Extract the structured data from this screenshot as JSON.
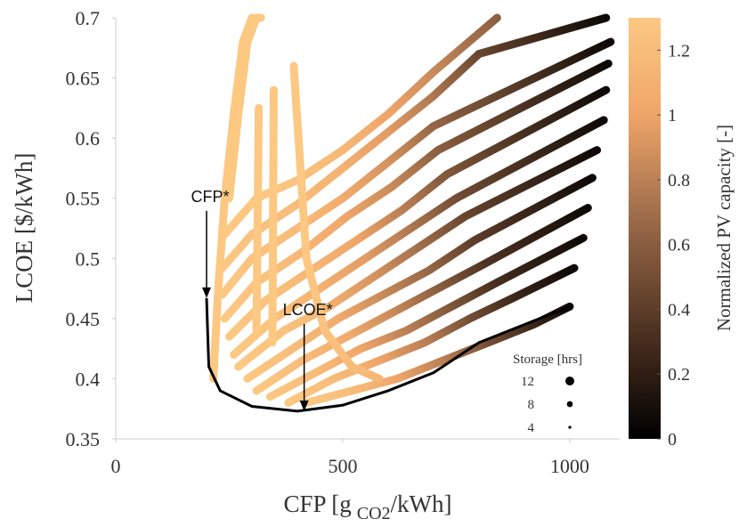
{
  "chart_data": {
    "type": "line",
    "xlabel": {
      "main": "CFP [g",
      "sub": "CO2",
      "tail": "/kWh]"
    },
    "ylabel": "LCOE [$/kWh]",
    "xlim": [
      0,
      1110
    ],
    "xticks": [
      0,
      500,
      1000
    ],
    "ylim": [
      0.35,
      0.7
    ],
    "yticks": [
      0.35,
      0.4,
      0.45,
      0.5,
      0.55,
      0.6,
      0.65,
      0.7
    ],
    "colorbar": {
      "label": "Normalized PV capacity [-]",
      "clim": [
        0,
        1.3
      ],
      "ticks": [
        0,
        0.2,
        0.4,
        0.6,
        0.8,
        1,
        1.2
      ]
    },
    "series": [
      {
        "x": [
          420,
          520,
          620,
          720,
          820,
          920,
          1000
        ],
        "values": [
          0.38,
          0.39,
          0.4,
          0.415,
          0.43,
          0.445,
          0.46
        ],
        "c": [
          1.3,
          1.2,
          1.0,
          0.8,
          0.5,
          0.25,
          0.05
        ]
      },
      {
        "x": [
          380,
          480,
          580,
          680,
          780,
          880,
          1010
        ],
        "values": [
          0.38,
          0.4,
          0.415,
          0.43,
          0.45,
          0.468,
          0.492
        ],
        "c": [
          1.3,
          1.2,
          1.0,
          0.8,
          0.5,
          0.25,
          0.05
        ]
      },
      {
        "x": [
          340,
          440,
          540,
          640,
          740,
          840,
          1030
        ],
        "values": [
          0.385,
          0.405,
          0.425,
          0.44,
          0.46,
          0.48,
          0.517
        ],
        "c": [
          1.3,
          1.2,
          1.0,
          0.8,
          0.55,
          0.3,
          0.05
        ]
      },
      {
        "x": [
          310,
          410,
          510,
          610,
          710,
          810,
          1040
        ],
        "values": [
          0.39,
          0.415,
          0.435,
          0.455,
          0.475,
          0.495,
          0.542
        ],
        "c": [
          1.3,
          1.2,
          1.05,
          0.85,
          0.6,
          0.35,
          0.05
        ]
      },
      {
        "x": [
          290,
          390,
          490,
          590,
          690,
          790,
          1050
        ],
        "values": [
          0.4,
          0.425,
          0.45,
          0.47,
          0.49,
          0.515,
          0.567
        ],
        "c": [
          1.3,
          1.2,
          1.05,
          0.85,
          0.65,
          0.4,
          0.05
        ]
      },
      {
        "x": [
          270,
          370,
          470,
          570,
          670,
          770,
          1060
        ],
        "values": [
          0.41,
          0.44,
          0.46,
          0.485,
          0.51,
          0.535,
          0.59
        ],
        "c": [
          1.3,
          1.25,
          1.1,
          0.9,
          0.7,
          0.45,
          0.05
        ]
      },
      {
        "x": [
          260,
          350,
          450,
          550,
          650,
          750,
          1075
        ],
        "values": [
          0.42,
          0.45,
          0.475,
          0.5,
          0.525,
          0.55,
          0.615
        ],
        "c": [
          1.3,
          1.25,
          1.1,
          0.95,
          0.75,
          0.5,
          0.05
        ]
      },
      {
        "x": [
          250,
          330,
          430,
          530,
          630,
          730,
          1080
        ],
        "values": [
          0.435,
          0.465,
          0.49,
          0.515,
          0.54,
          0.57,
          0.64
        ],
        "c": [
          1.3,
          1.25,
          1.15,
          1.0,
          0.8,
          0.55,
          0.05
        ]
      },
      {
        "x": [
          240,
          310,
          410,
          510,
          610,
          710,
          1085
        ],
        "values": [
          0.45,
          0.48,
          0.505,
          0.535,
          0.56,
          0.59,
          0.662
        ],
        "c": [
          1.3,
          1.25,
          1.15,
          1.0,
          0.85,
          0.6,
          0.05
        ]
      },
      {
        "x": [
          235,
          300,
          400,
          500,
          600,
          700,
          1090
        ],
        "values": [
          0.47,
          0.5,
          0.525,
          0.55,
          0.58,
          0.61,
          0.68
        ],
        "c": [
          1.3,
          1.25,
          1.2,
          1.05,
          0.9,
          0.65,
          0.05
        ]
      },
      {
        "x": [
          230,
          300,
          400,
          500,
          600,
          700,
          800,
          1080
        ],
        "values": [
          0.49,
          0.52,
          0.545,
          0.575,
          0.605,
          0.635,
          0.67,
          0.7
        ],
        "c": [
          1.3,
          1.25,
          1.2,
          1.1,
          0.95,
          0.75,
          0.45,
          0.05
        ]
      },
      {
        "x": [
          240,
          310,
          400,
          500,
          600,
          700,
          840
        ],
        "values": [
          0.52,
          0.55,
          0.565,
          0.59,
          0.62,
          0.655,
          0.7
        ],
        "c": [
          1.3,
          1.3,
          1.25,
          1.15,
          1.0,
          0.85,
          0.6
        ]
      },
      {
        "x": [
          215,
          225,
          240,
          260,
          280,
          300
        ],
        "values": [
          0.4,
          0.47,
          0.55,
          0.62,
          0.68,
          0.7
        ],
        "c": [
          1.3,
          1.3,
          1.3,
          1.3,
          1.3,
          1.3
        ]
      },
      {
        "x": [
          250,
          270,
          290,
          310,
          320
        ],
        "values": [
          0.55,
          0.62,
          0.68,
          0.7,
          0.7
        ],
        "c": [
          1.3,
          1.3,
          1.3,
          1.3,
          1.3
        ]
      },
      {
        "x": [
          310,
          315
        ],
        "values": [
          0.44,
          0.625
        ],
        "c": [
          1.3,
          1.3
        ]
      },
      {
        "x": [
          345,
          348
        ],
        "values": [
          0.43,
          0.64
        ],
        "c": [
          1.3,
          1.3
        ]
      },
      {
        "x": [
          392,
          420,
          460,
          520,
          580
        ],
        "values": [
          0.66,
          0.5,
          0.44,
          0.41,
          0.4
        ],
        "c": [
          1.3,
          1.3,
          1.25,
          1.2,
          1.15
        ]
      }
    ],
    "frontier": {
      "color": "#000000",
      "x": [
        200,
        205,
        230,
        300,
        400,
        500,
        600,
        700,
        800,
        900,
        1000
      ],
      "values": [
        0.467,
        0.41,
        0.39,
        0.377,
        0.373,
        0.378,
        0.39,
        0.405,
        0.43,
        0.445,
        0.46
      ]
    },
    "annotations": [
      {
        "text": "CFP*",
        "x": 200,
        "y": 0.467
      },
      {
        "text": "LCOE*",
        "x": 415,
        "y": 0.373
      }
    ],
    "size_legend": {
      "title": "Storage [hrs]",
      "values": [
        12,
        8,
        4
      ]
    }
  }
}
